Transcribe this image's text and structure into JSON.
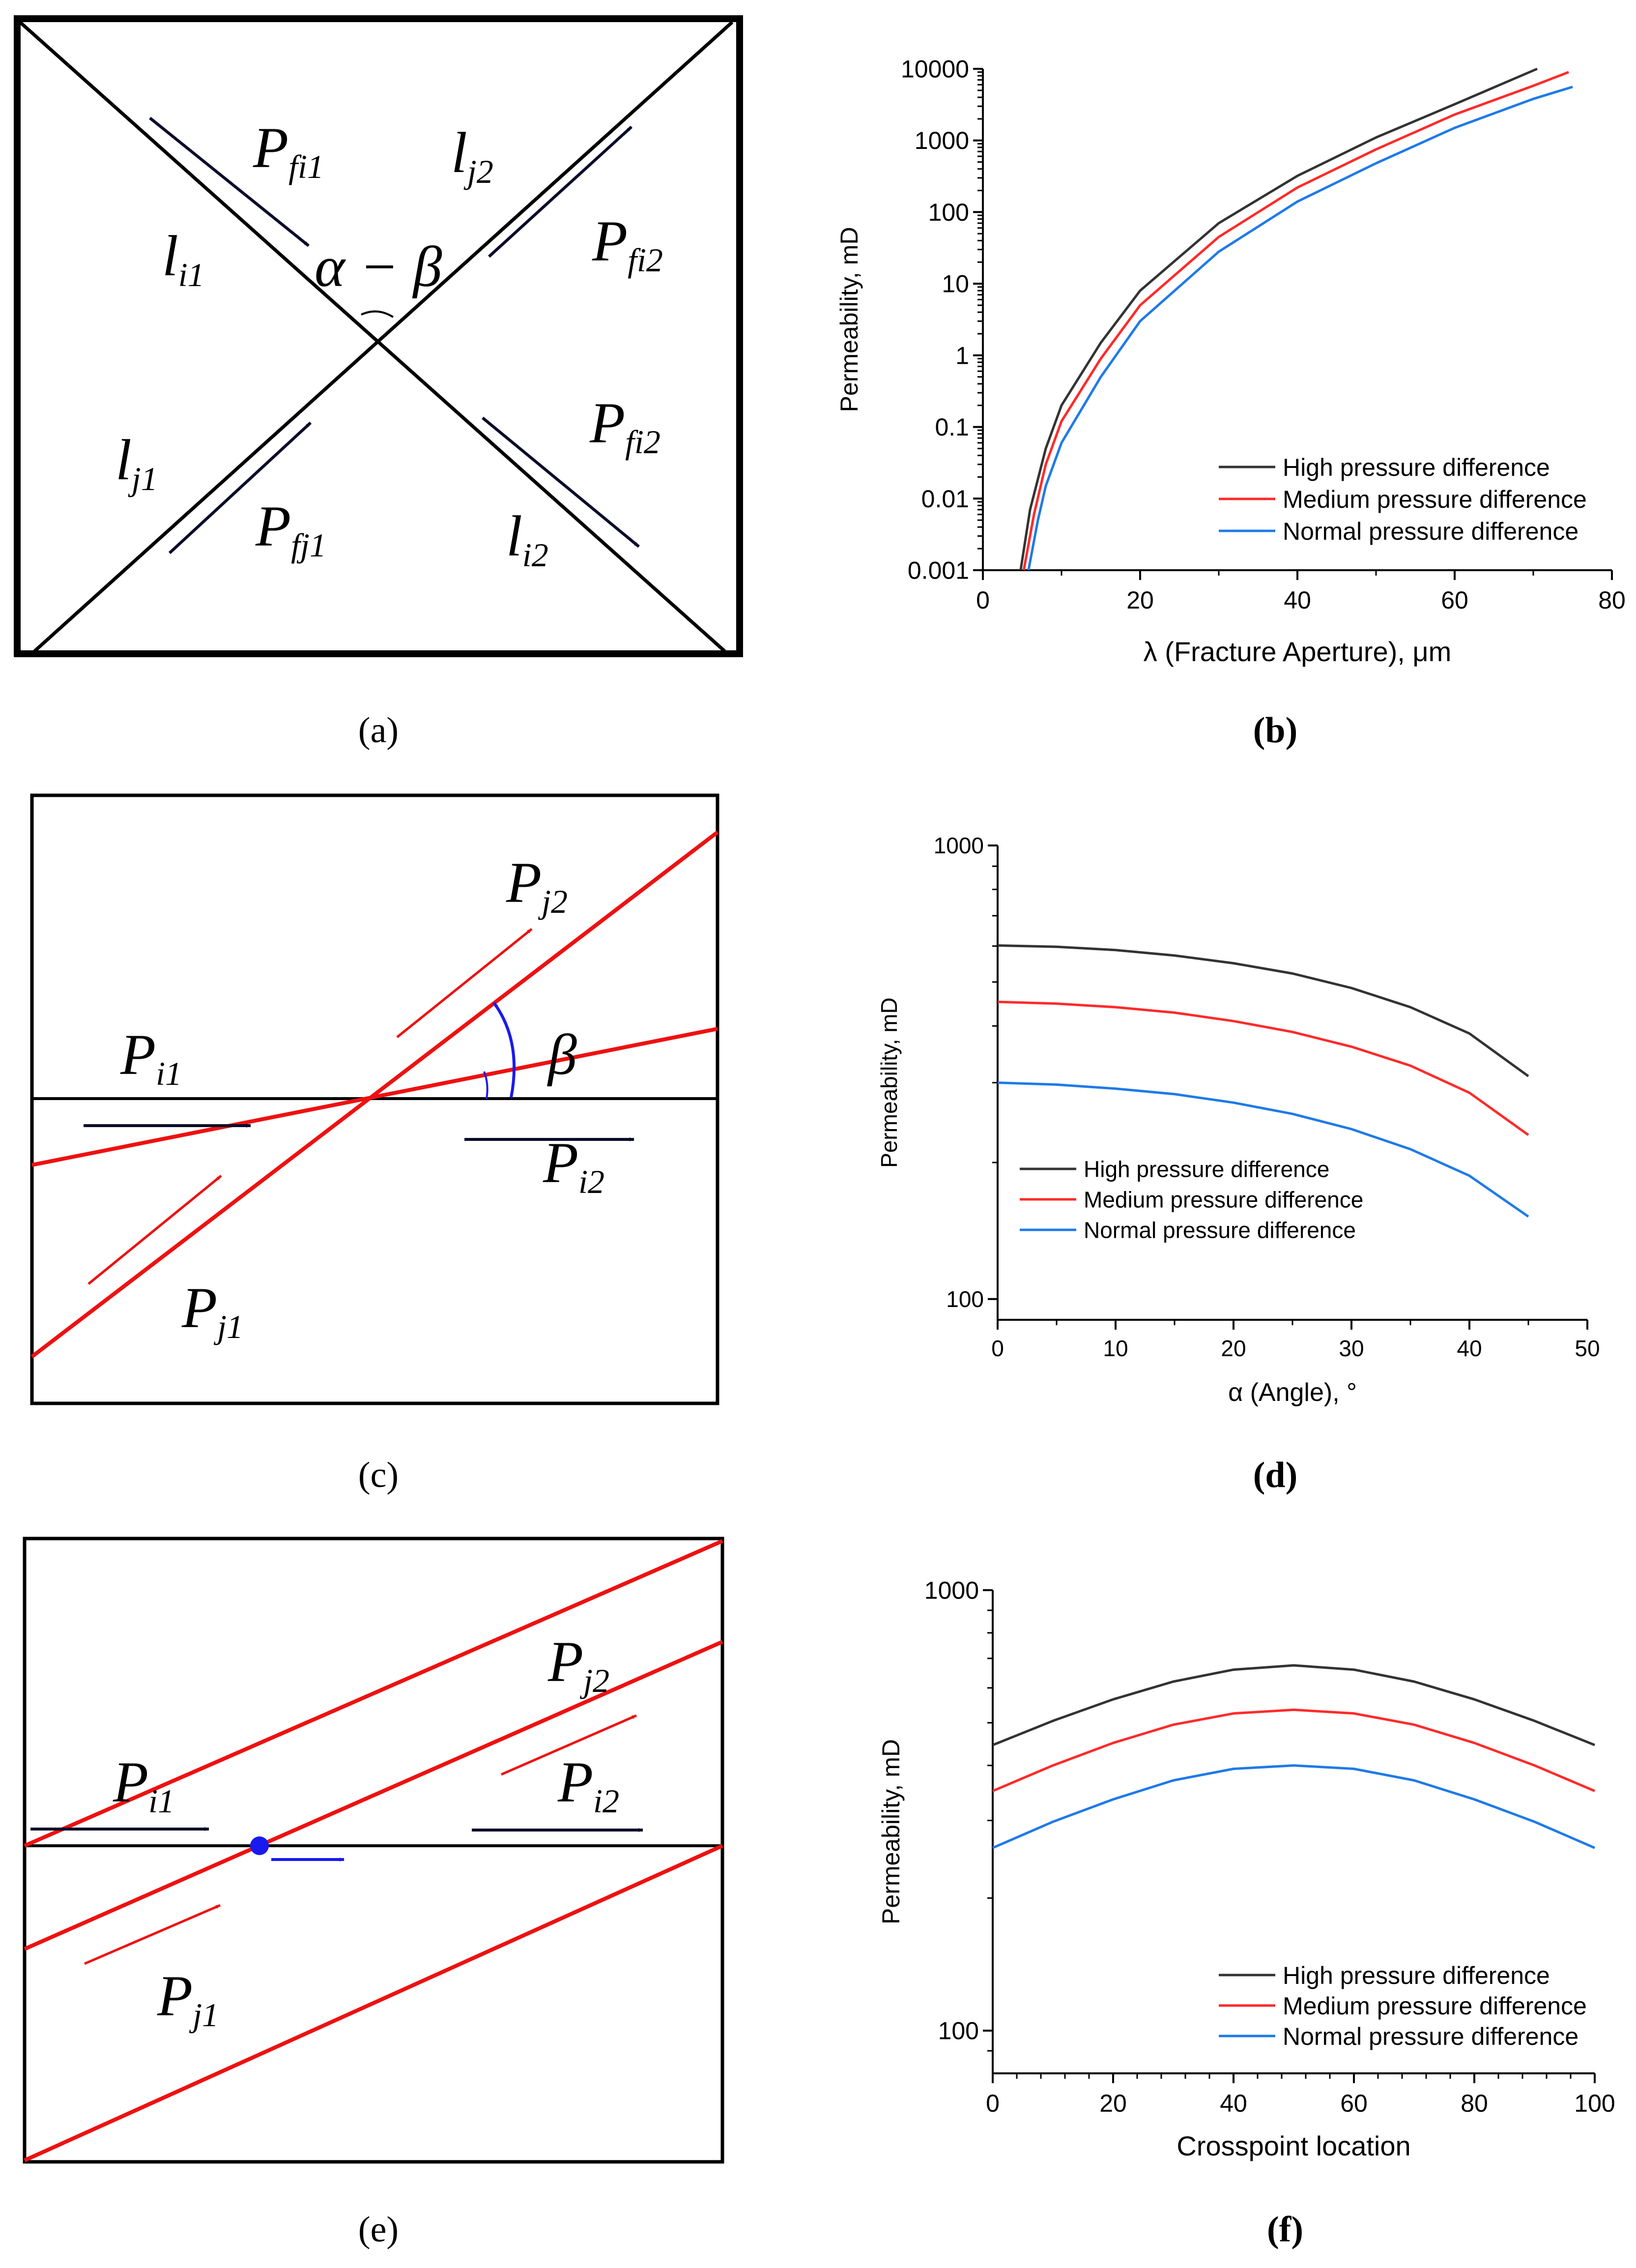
{
  "colors": {
    "high": "#333333",
    "medium": "#ff2a2a",
    "normal": "#1f7ae8",
    "red_line": "#ee1111",
    "blue_arrow": "#1a1aee",
    "black": "#000000",
    "dark_arrow": "#0b0b2a"
  },
  "panel_labels": {
    "a": "(a)",
    "b": "(b)",
    "c": "(c)",
    "d": "(d)",
    "e": "(e)",
    "f": "(f)"
  },
  "diagram_a": {
    "p_fi1_main": "P",
    "p_fi1_sub": "fi1",
    "l_j2_main": "l",
    "l_j2_sub": "j2",
    "l_i1_main": "l",
    "l_i1_sub": "i1",
    "angle": "α − β",
    "p_fi2_top_main": "P",
    "p_fi2_top_sub": "fi2",
    "p_fi2_bot_main": "P",
    "p_fi2_bot_sub": "fi2",
    "l_j1_main": "l",
    "l_j1_sub": "j1",
    "p_fj1_main": "P",
    "p_fj1_sub": "fj1",
    "l_i2_main": "l",
    "l_i2_sub": "i2"
  },
  "diagram_c": {
    "p_j2_main": "P",
    "p_j2_sub": "j2",
    "p_i1_main": "P",
    "p_i1_sub": "i1",
    "beta": "β",
    "p_i2_main": "P",
    "p_i2_sub": "i2",
    "p_j1_main": "P",
    "p_j1_sub": "j1"
  },
  "diagram_e": {
    "p_j2_main": "P",
    "p_j2_sub": "j2",
    "p_i1_main": "P",
    "p_i1_sub": "i1",
    "p_i2_main": "P",
    "p_i2_sub": "i2",
    "p_j1_main": "P",
    "p_j1_sub": "j1"
  },
  "chart_data": [
    {
      "id": "b",
      "type": "line",
      "xlabel": "λ (Fracture Aperture), μm",
      "ylabel": "Permeability, mD",
      "xlim": [
        0,
        80
      ],
      "ylim": [
        0.001,
        10000
      ],
      "yscale": "log",
      "xticks": [
        0,
        20,
        40,
        60,
        80
      ],
      "xtick_labels": [
        "0",
        "20",
        "40",
        "60",
        "80"
      ],
      "yticks": [
        0.001,
        0.01,
        0.1,
        1,
        10,
        100,
        1000,
        10000
      ],
      "ytick_labels": [
        "0.001",
        "0.01",
        "0.1",
        "1",
        "10",
        "100",
        "1000",
        "10000"
      ],
      "legend": [
        "High pressure difference",
        "Medium pressure difference",
        "Normal pressure difference"
      ],
      "legend_position": "bottom-right",
      "series": [
        {
          "name": "High pressure difference",
          "x": [
            4.8,
            6,
            8,
            10,
            15,
            20,
            30,
            40,
            50,
            60,
            70.5
          ],
          "values": [
            0.001,
            0.007,
            0.05,
            0.2,
            1.5,
            8,
            70,
            320,
            1100,
            3200,
            10000
          ]
        },
        {
          "name": "Medium pressure difference",
          "x": [
            5.2,
            6.5,
            8,
            10,
            15,
            20,
            30,
            40,
            50,
            60,
            70,
            74.5
          ],
          "values": [
            0.001,
            0.006,
            0.03,
            0.12,
            0.9,
            5,
            45,
            220,
            750,
            2300,
            5800,
            9000
          ]
        },
        {
          "name": "Normal pressure difference",
          "x": [
            5.8,
            7,
            8,
            10,
            15,
            20,
            30,
            40,
            50,
            60,
            70,
            75
          ],
          "values": [
            0.001,
            0.005,
            0.015,
            0.06,
            0.5,
            3,
            28,
            140,
            480,
            1500,
            3800,
            5600
          ]
        }
      ]
    },
    {
      "id": "d",
      "type": "line",
      "xlabel": "α (Angle), °",
      "ylabel": "Permeability, mD",
      "xlim": [
        0,
        50
      ],
      "ylim": [
        90,
        1000
      ],
      "yscale": "log",
      "xticks": [
        0,
        10,
        20,
        30,
        40,
        50
      ],
      "xtick_labels": [
        "0",
        "10",
        "20",
        "30",
        "40",
        "50"
      ],
      "yticks": [
        100,
        1000
      ],
      "ytick_labels": [
        "100",
        "1000"
      ],
      "legend": [
        "High pressure difference",
        "Medium pressure difference",
        "Normal pressure difference"
      ],
      "legend_position": "center-left",
      "series": [
        {
          "name": "High pressure difference",
          "x": [
            0,
            5,
            10,
            15,
            20,
            25,
            30,
            35,
            40,
            45
          ],
          "values": [
            602,
            598,
            588,
            572,
            550,
            522,
            485,
            440,
            385,
            310
          ]
        },
        {
          "name": "Medium pressure difference",
          "x": [
            0,
            5,
            10,
            15,
            20,
            25,
            30,
            35,
            40,
            45
          ],
          "values": [
            452,
            448,
            440,
            428,
            410,
            388,
            360,
            327,
            285,
            230
          ]
        },
        {
          "name": "Normal pressure difference",
          "x": [
            0,
            5,
            10,
            15,
            20,
            25,
            30,
            35,
            40,
            45
          ],
          "values": [
            300,
            297,
            291,
            283,
            271,
            256,
            237,
            214,
            187,
            152
          ]
        }
      ]
    },
    {
      "id": "f",
      "type": "line",
      "xlabel": "Crosspoint location",
      "ylabel": "Permeability, mD",
      "xlim": [
        0,
        100
      ],
      "ylim": [
        80,
        1000
      ],
      "yscale": "log",
      "xticks": [
        0,
        20,
        40,
        60,
        80,
        100
      ],
      "xtick_labels": [
        "0",
        "20",
        "40",
        "60",
        "80",
        "100"
      ],
      "yticks": [
        100,
        1000
      ],
      "ytick_labels": [
        "100",
        "1000"
      ],
      "legend": [
        "High pressure difference",
        "Medium pressure difference",
        "Normal pressure difference"
      ],
      "legend_position": "bottom-right",
      "series": [
        {
          "name": "High pressure difference",
          "x": [
            0,
            10,
            20,
            30,
            40,
            50,
            60,
            70,
            80,
            90,
            100
          ],
          "values": [
            445,
            505,
            565,
            620,
            660,
            675,
            660,
            620,
            565,
            505,
            445
          ]
        },
        {
          "name": "Medium pressure difference",
          "x": [
            0,
            10,
            20,
            30,
            40,
            50,
            60,
            70,
            80,
            90,
            100
          ],
          "values": [
            350,
            400,
            450,
            495,
            525,
            535,
            525,
            495,
            450,
            400,
            350
          ]
        },
        {
          "name": "Normal pressure difference",
          "x": [
            0,
            10,
            20,
            30,
            40,
            50,
            60,
            70,
            80,
            90,
            100
          ],
          "values": [
            260,
            298,
            335,
            370,
            393,
            400,
            393,
            370,
            335,
            298,
            260
          ]
        }
      ]
    }
  ]
}
